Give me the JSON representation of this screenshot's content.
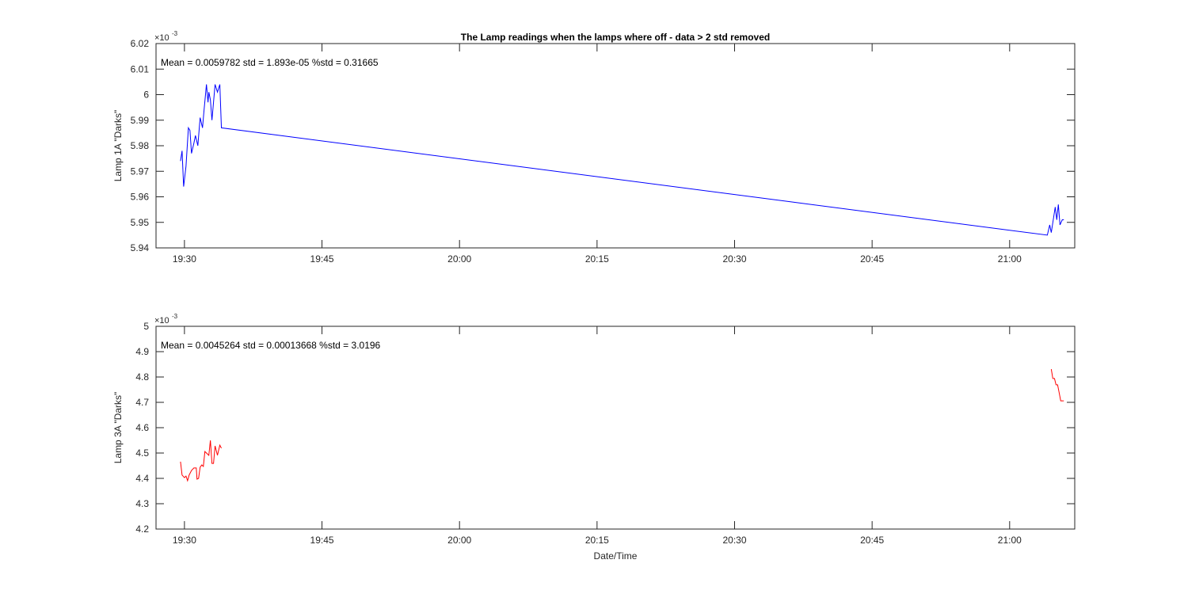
{
  "chart_data": [
    {
      "type": "line",
      "title": "The Lamp readings when the lamps where off - data > 2 std removed",
      "ylabel": "Lamp 1A \"Darks\"",
      "annotation": "Mean = 0.0059782  std = 1.893e-05  %std = 0.31665",
      "y_scale_base": "×10",
      "y_scale_exponent": "-3",
      "color": "#0000ff",
      "x": [
        1169.57,
        1169.74,
        1169.91,
        1170.17,
        1170.43,
        1170.6,
        1170.77,
        1171.03,
        1171.2,
        1171.46,
        1171.71,
        1171.97,
        1172.14,
        1172.4,
        1172.57,
        1172.66,
        1172.83,
        1173,
        1173.17,
        1173.34,
        1173.6,
        1173.86,
        1174.03,
        1264.11,
        1264.37,
        1264.54,
        1264.8,
        1264.97,
        1265.14,
        1265.31,
        1265.49,
        1265.74,
        1265.91
      ],
      "values": [
        5.974,
        5.978,
        5.964,
        5.972,
        5.987,
        5.986,
        5.977,
        5.981,
        5.984,
        5.98,
        5.991,
        5.987,
        5.994,
        6.004,
        5.997,
        6.001,
        5.998,
        5.99,
        5.997,
        6.004,
        6.001,
        6.004,
        5.987,
        5.945,
        5.949,
        5.946,
        5.952,
        5.956,
        5.951,
        5.957,
        5.949,
        5.951,
        5.951
      ],
      "xlim": [
        1166.9,
        1267.1
      ],
      "xticks": [
        {
          "value": 1170,
          "label": "19:30"
        },
        {
          "value": 1185,
          "label": "19:45"
        },
        {
          "value": 1200,
          "label": "20:00"
        },
        {
          "value": 1215,
          "label": "20:15"
        },
        {
          "value": 1230,
          "label": "20:30"
        },
        {
          "value": 1245,
          "label": "20:45"
        },
        {
          "value": 1260,
          "label": "21:00"
        }
      ],
      "ylim": [
        5.94,
        6.02
      ],
      "yticks": [
        5.94,
        5.95,
        5.96,
        5.97,
        5.98,
        5.99,
        6,
        6.01,
        6.02
      ]
    },
    {
      "type": "line",
      "ylabel": "Lamp 3A \"Darks\"",
      "xlabel": "Date/Time",
      "annotation": "Mean = 0.0045264  std = 0.00013668  %std = 3.0196",
      "y_scale_base": "×10",
      "y_scale_exponent": "-3",
      "color": "#ff0000",
      "x": [
        1169.57,
        1169.74,
        1170,
        1170.17,
        1170.34,
        1170.51,
        1170.77,
        1171.03,
        1171.29,
        1171.37,
        1171.54,
        1171.71,
        1171.89,
        1172.06,
        1172.23,
        1172.49,
        1172.66,
        1172.83,
        1173,
        1173.17,
        1173.34,
        1173.6,
        1173.86,
        1174.03,
        null,
        1264.54,
        1264.71,
        1264.89,
        1265.06,
        1265.23,
        1265.4,
        1265.57,
        1265.91
      ],
      "values": [
        4.466,
        4.413,
        4.403,
        4.409,
        4.391,
        4.413,
        4.431,
        4.441,
        4.441,
        4.397,
        4.4,
        4.444,
        4.453,
        4.447,
        4.506,
        4.497,
        4.491,
        4.55,
        4.459,
        4.459,
        4.528,
        4.491,
        4.531,
        4.519,
        null,
        4.831,
        4.794,
        4.794,
        4.769,
        4.769,
        4.738,
        4.706,
        4.706
      ],
      "xlim": [
        1166.9,
        1267.1
      ],
      "xticks": [
        {
          "value": 1170,
          "label": "19:30"
        },
        {
          "value": 1185,
          "label": "19:45"
        },
        {
          "value": 1200,
          "label": "20:00"
        },
        {
          "value": 1215,
          "label": "20:15"
        },
        {
          "value": 1230,
          "label": "20:30"
        },
        {
          "value": 1245,
          "label": "20:45"
        },
        {
          "value": 1260,
          "label": "21:00"
        }
      ],
      "ylim": [
        4.2,
        5
      ],
      "yticks": [
        4.2,
        4.3,
        4.4,
        4.5,
        4.6,
        4.7,
        4.8,
        4.9,
        5
      ]
    }
  ]
}
